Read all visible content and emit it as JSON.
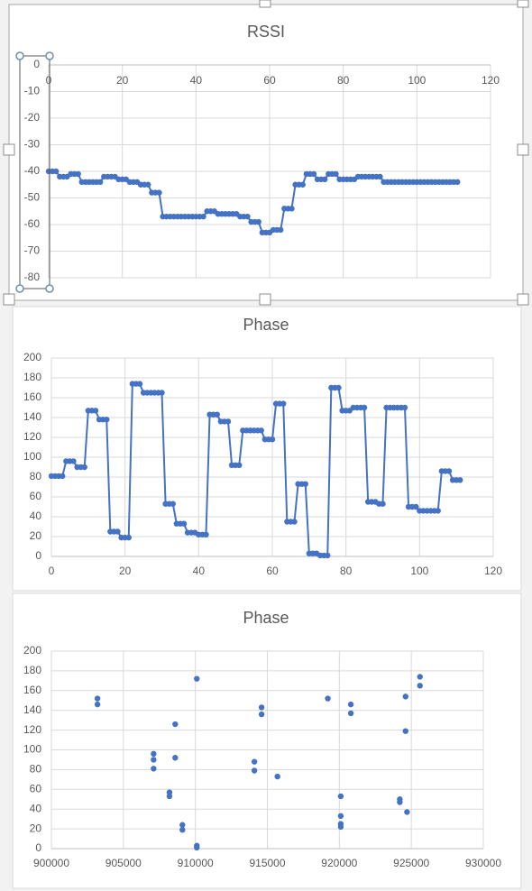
{
  "chart_data": [
    {
      "type": "line",
      "title": "RSSI",
      "color": "#4472c4",
      "grid": true,
      "xaxis_position": "top",
      "xlim": [
        0,
        120
      ],
      "xticks": [
        0,
        20,
        40,
        60,
        80,
        100,
        120
      ],
      "ylim": [
        -80,
        0
      ],
      "yticks": [
        0,
        -10,
        -20,
        -30,
        -40,
        -50,
        -60,
        -70,
        -80
      ],
      "x": [
        0,
        1,
        2,
        3,
        4,
        5,
        6,
        7,
        8,
        9,
        10,
        11,
        12,
        13,
        14,
        15,
        16,
        17,
        18,
        19,
        20,
        21,
        22,
        23,
        24,
        25,
        26,
        27,
        28,
        29,
        30,
        31,
        32,
        33,
        34,
        35,
        36,
        37,
        38,
        39,
        40,
        41,
        42,
        43,
        44,
        45,
        46,
        47,
        48,
        49,
        50,
        51,
        52,
        53,
        54,
        55,
        56,
        57,
        58,
        59,
        60,
        61,
        62,
        63,
        64,
        65,
        66,
        67,
        68,
        69,
        70,
        71,
        72,
        73,
        74,
        75,
        76,
        77,
        78,
        79,
        80,
        81,
        82,
        83,
        84,
        85,
        86,
        87,
        88,
        89,
        90,
        91,
        92,
        93,
        94,
        95,
        96,
        97,
        98,
        99,
        100,
        101,
        102,
        103,
        104,
        105,
        106,
        107,
        108,
        109,
        110,
        111
      ],
      "values": [
        -40,
        -40,
        -40,
        -42,
        -42,
        -42,
        -41,
        -41,
        -41,
        -44,
        -44,
        -44,
        -44,
        -44,
        -44,
        -42,
        -42,
        -42,
        -42,
        -43,
        -43,
        -43,
        -44,
        -44,
        -44,
        -45,
        -45,
        -45,
        -48,
        -48,
        -48,
        -57,
        -57,
        -57,
        -57,
        -57,
        -57,
        -57,
        -57,
        -57,
        -57,
        -57,
        -57,
        -55,
        -55,
        -55,
        -56,
        -56,
        -56,
        -56,
        -56,
        -56,
        -57,
        -57,
        -57,
        -59,
        -59,
        -59,
        -63,
        -63,
        -63,
        -62,
        -62,
        -62,
        -54,
        -54,
        -54,
        -45,
        -45,
        -45,
        -41,
        -41,
        -41,
        -43,
        -43,
        -43,
        -41,
        -41,
        -41,
        -43,
        -43,
        -43,
        -43,
        -43,
        -42,
        -42,
        -42,
        -42,
        -42,
        -42,
        -42,
        -44,
        -44,
        -44,
        -44,
        -44,
        -44,
        -44,
        -44,
        -44,
        -44,
        -44,
        -44,
        -44,
        -44,
        -44,
        -44,
        -44,
        -44,
        -44,
        -44,
        -44
      ]
    },
    {
      "type": "line",
      "title": "Phase",
      "color": "#4472c4",
      "grid": true,
      "xaxis_position": "bottom",
      "xlim": [
        0,
        120
      ],
      "xticks": [
        0,
        20,
        40,
        60,
        80,
        100,
        120
      ],
      "ylim": [
        0,
        200
      ],
      "yticks": [
        0,
        20,
        40,
        60,
        80,
        100,
        120,
        140,
        160,
        180,
        200
      ],
      "x": [
        0,
        1,
        2,
        3,
        4,
        5,
        6,
        7,
        8,
        9,
        10,
        11,
        12,
        13,
        14,
        15,
        16,
        17,
        18,
        19,
        20,
        21,
        22,
        23,
        24,
        25,
        26,
        27,
        28,
        29,
        30,
        31,
        32,
        33,
        34,
        35,
        36,
        37,
        38,
        39,
        40,
        41,
        42,
        43,
        44,
        45,
        46,
        47,
        48,
        49,
        50,
        51,
        52,
        53,
        54,
        55,
        56,
        57,
        58,
        59,
        60,
        61,
        62,
        63,
        64,
        65,
        66,
        67,
        68,
        69,
        70,
        71,
        72,
        73,
        74,
        75,
        76,
        77,
        78,
        79,
        80,
        81,
        82,
        83,
        84,
        85,
        86,
        87,
        88,
        89,
        90,
        91,
        92,
        93,
        94,
        95,
        96,
        97,
        98,
        99,
        100,
        101,
        102,
        103,
        104,
        105,
        106,
        107,
        108,
        109,
        110,
        111
      ],
      "values": [
        81,
        81,
        81,
        81,
        96,
        96,
        96,
        90,
        90,
        90,
        147,
        147,
        147,
        138,
        138,
        138,
        25,
        25,
        25,
        19,
        19,
        19,
        174,
        174,
        174,
        165,
        165,
        165,
        165,
        165,
        165,
        53,
        53,
        53,
        33,
        33,
        33,
        24,
        24,
        24,
        22,
        22,
        22,
        143,
        143,
        143,
        136,
        136,
        136,
        92,
        92,
        92,
        127,
        127,
        127,
        127,
        127,
        127,
        118,
        118,
        118,
        154,
        154,
        154,
        35,
        35,
        35,
        73,
        73,
        73,
        3,
        3,
        3,
        1,
        1,
        1,
        170,
        170,
        170,
        147,
        147,
        147,
        150,
        150,
        150,
        150,
        55,
        55,
        55,
        53,
        53,
        150,
        150,
        150,
        150,
        150,
        150,
        50,
        50,
        50,
        46,
        46,
        46,
        46,
        46,
        46,
        86,
        86,
        86,
        77,
        77,
        77
      ]
    },
    {
      "type": "scatter",
      "title": "Phase",
      "color": "#4472c4",
      "grid": true,
      "xaxis_position": "bottom",
      "xlim": [
        900000,
        930000
      ],
      "xticks": [
        900000,
        905000,
        910000,
        915000,
        920000,
        925000,
        930000
      ],
      "ylim": [
        0,
        200
      ],
      "yticks": [
        0,
        20,
        40,
        60,
        80,
        100,
        120,
        140,
        160,
        180,
        200
      ],
      "x": [
        903200,
        903200,
        907100,
        907100,
        907100,
        908200,
        908200,
        908600,
        908600,
        909100,
        909100,
        910100,
        910100,
        910100,
        914100,
        914100,
        914600,
        914600,
        915700,
        919200,
        920100,
        920100,
        920100,
        920100,
        920800,
        920800,
        924200,
        924200,
        924600,
        924600,
        924700,
        925600,
        925600
      ],
      "values": [
        152,
        146,
        96,
        90,
        81,
        57,
        53,
        126,
        92,
        24,
        19,
        172,
        3,
        1,
        88,
        79,
        143,
        136,
        73,
        152,
        53,
        33,
        25,
        22,
        146,
        137,
        50,
        47,
        154,
        119,
        37,
        174,
        165
      ]
    }
  ]
}
